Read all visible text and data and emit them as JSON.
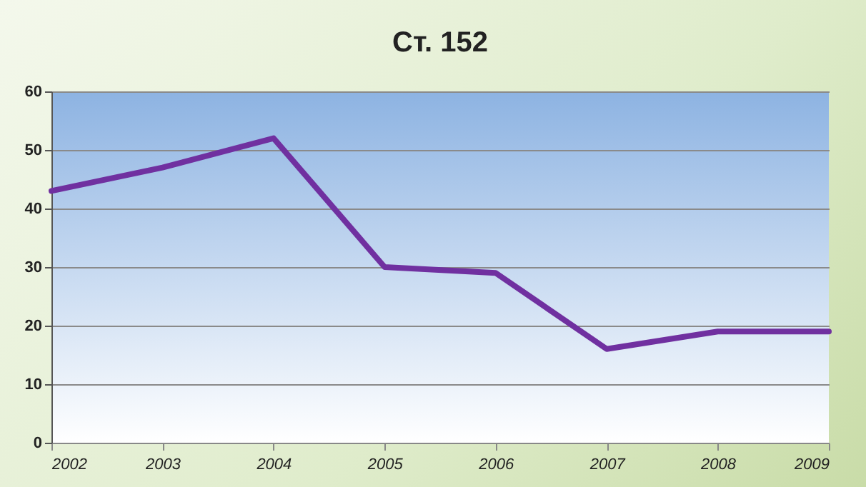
{
  "chart_data": {
    "type": "line",
    "title": "Ст. 152",
    "x": [
      2002,
      2003,
      2004,
      2005,
      2006,
      2007,
      2008,
      2009
    ],
    "series": [
      {
        "color": "#7030a0",
        "values": [
          43,
          47,
          52,
          30,
          29,
          16,
          19,
          19
        ]
      }
    ],
    "xlim": [
      2002,
      2009
    ],
    "xticks": [
      2002,
      2003,
      2004,
      2005,
      2006,
      2007,
      2008,
      2009
    ],
    "ylim": [
      0,
      60
    ],
    "yticks": [
      0,
      10,
      20,
      30,
      40,
      50,
      60
    ],
    "grid": "y",
    "marker": "none",
    "line_style": "solid"
  }
}
